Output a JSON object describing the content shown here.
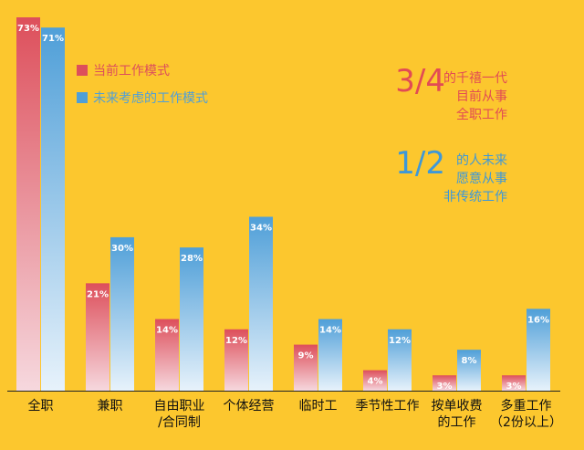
{
  "chart_data": {
    "type": "bar",
    "categories": [
      [
        "全职"
      ],
      [
        "兼职"
      ],
      [
        "自由职业",
        "/合同制"
      ],
      [
        "个体经营"
      ],
      [
        "临时工"
      ],
      [
        "季节性工作"
      ],
      [
        "按单收费",
        "的工作"
      ],
      [
        "多重工作",
        "（2份以上）"
      ]
    ],
    "series": [
      {
        "name": "当前工作模式",
        "values": [
          73,
          21,
          14,
          12,
          9,
          4,
          3,
          3
        ],
        "labels": [
          "73%",
          "21%",
          "14%",
          "12%",
          "9%",
          "4%",
          "3%",
          "3%"
        ],
        "color_top": "#dd4f5b",
        "color_bottom": "#f6d8de"
      },
      {
        "name": "未来考虑的工作模式",
        "values": [
          71,
          30,
          28,
          34,
          14,
          12,
          8,
          16
        ],
        "labels": [
          "71%",
          "30%",
          "28%",
          "34%",
          "14%",
          "12%",
          "8%",
          "16%"
        ],
        "color_top": "#4f9fd8",
        "color_bottom": "#e7f2fb"
      }
    ],
    "ylim": [
      0,
      73
    ],
    "grid": false,
    "legend_position": "top-left"
  },
  "annotations": [
    {
      "big": "3/4",
      "lines": [
        "的千禧一代",
        "目前从事",
        "全职工作"
      ],
      "big_color": "#e24b54",
      "text_color": "#e24b54"
    },
    {
      "big": "1/2",
      "lines": [
        "的人未来",
        "愿意从事",
        "非传统工作"
      ],
      "big_color": "#3e98d8",
      "text_color": "#3e98d8"
    }
  ],
  "colors": {
    "background": "#fcc72e",
    "axis": "#222222",
    "category_text": "#111111",
    "bar_label": "#ffffff"
  }
}
